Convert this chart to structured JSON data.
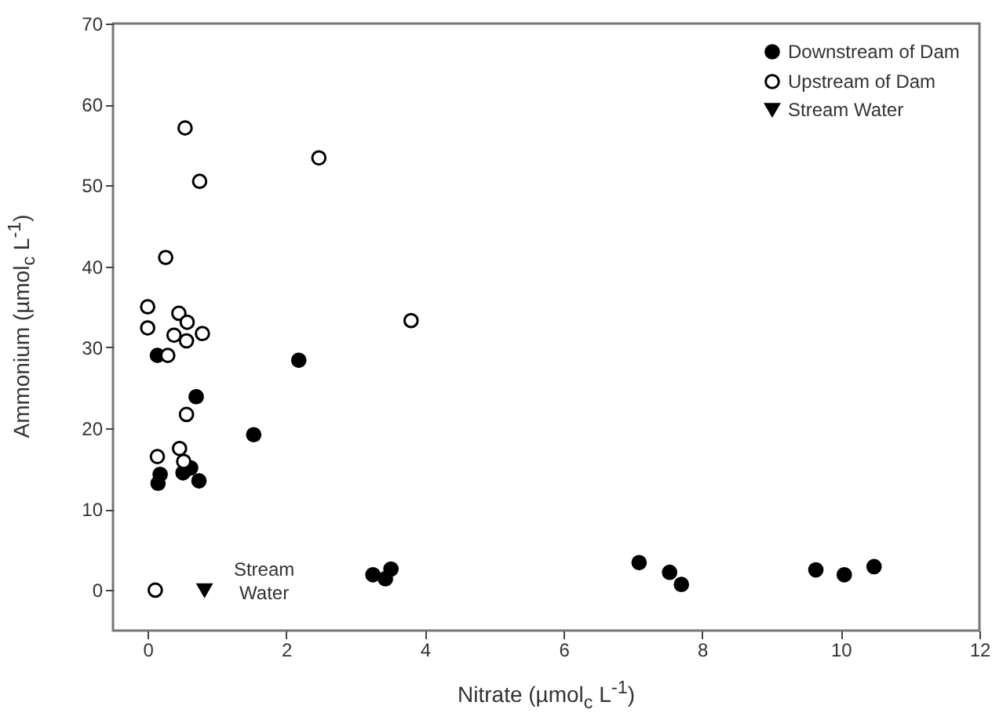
{
  "chart_data": {
    "type": "scatter",
    "xlabel": "Nitrate (µmol$_{c}$ L$^{-1}$)",
    "ylabel": "Ammonium (µmol$_{c}$ L$^{-1}$)",
    "xlim": [
      -0.5,
      12
    ],
    "xticks": [
      0,
      2,
      4,
      6,
      8,
      10,
      12
    ],
    "ylim": [
      -5,
      70
    ],
    "yticks": [
      0,
      10,
      20,
      30,
      40,
      50,
      60,
      70
    ],
    "grid": false,
    "legend": "top right",
    "series": [
      {
        "name": "Downstream of Dam",
        "color": "#000000",
        "marker": "circle",
        "x": [
          0.14,
          0.7,
          1.53,
          2.18,
          0.18,
          0.15,
          0.51,
          0.62,
          0.74,
          3.25,
          3.43,
          3.51,
          7.09,
          7.53,
          7.7,
          9.64,
          10.05,
          10.48
        ],
        "values": [
          29.0,
          23.9,
          19.2,
          28.4,
          14.3,
          13.2,
          14.5,
          15.1,
          13.5,
          1.9,
          1.4,
          2.6,
          3.4,
          2.2,
          0.7,
          2.5,
          1.9,
          2.9
        ]
      },
      {
        "name": "Upstream of Dam",
        "color": "#000000",
        "marker": "open-circle",
        "x": [
          0.54,
          0.75,
          0.26,
          0.0,
          0.0,
          0.45,
          0.57,
          0.38,
          0.56,
          0.79,
          0.29,
          0.56,
          0.46,
          0.14,
          0.52,
          0.11,
          2.47,
          3.8
        ],
        "values": [
          57.1,
          50.5,
          41.1,
          35.0,
          32.4,
          34.2,
          33.1,
          31.5,
          30.8,
          31.7,
          29.0,
          21.7,
          17.5,
          16.5,
          15.9,
          0.0,
          53.4,
          33.3
        ]
      },
      {
        "name": "Stream Water",
        "color": "#000000",
        "marker": "triangle-down",
        "x": [
          0.82
        ],
        "values": [
          0.0
        ]
      }
    ],
    "annotations": [
      {
        "text": "Stream\nWater",
        "x": 0.82,
        "y": 0
      }
    ]
  }
}
